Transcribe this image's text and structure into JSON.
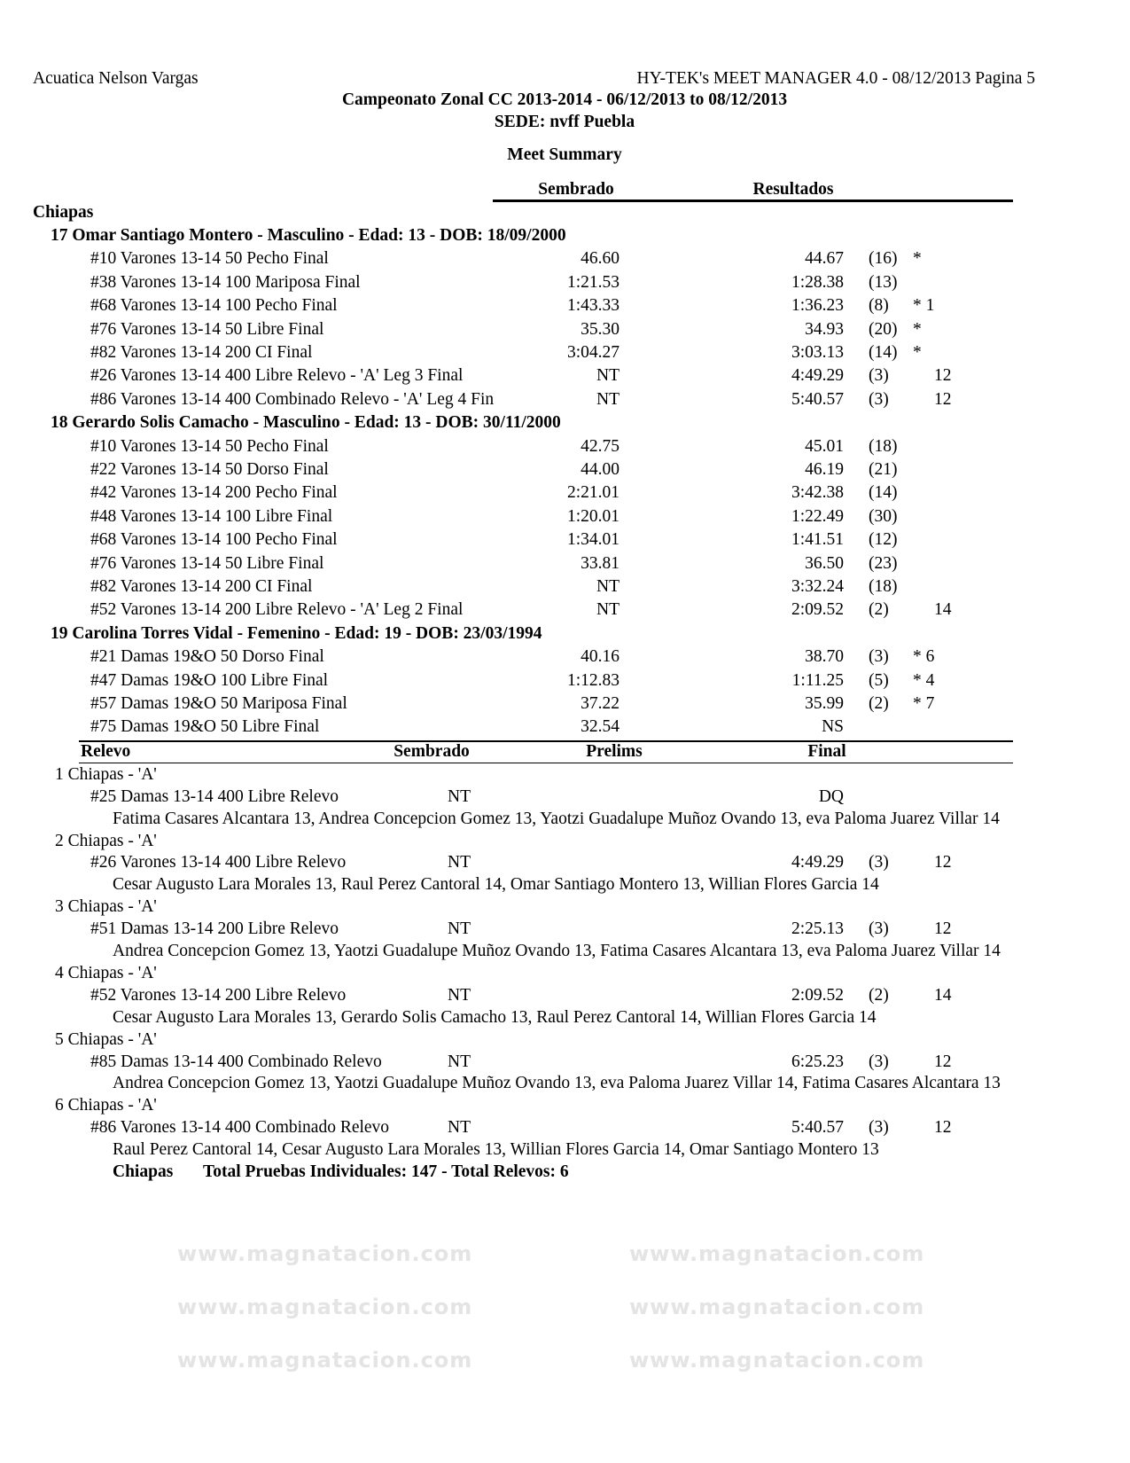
{
  "header": {
    "club": "Acuatica Nelson Vargas",
    "software": "HY-TEK's MEET MANAGER 4.0 - 08/12/2013  Pagina 5",
    "meet_title": "Campeonato Zonal CC 2013-2014 - 06/12/2013 to 08/12/2013",
    "venue": "SEDE: nvff Puebla",
    "report_title": "Meet Summary"
  },
  "watermark": "www.magnatacion.com",
  "columns": {
    "seed": "Sembrado",
    "results": "Resultados"
  },
  "team": "Chiapas",
  "swimmers": [
    {
      "header": "17  Omar Santiago Montero - Masculino - Edad: 13 - DOB: 18/09/2000",
      "events": [
        {
          "event": "#10 Varones 13-14 50 Pecho Final",
          "seed": "46.60",
          "result": "44.67",
          "place": "(16)",
          "mark": "*",
          "points": ""
        },
        {
          "event": "#38 Varones 13-14 100 Mariposa Final",
          "seed": "1:21.53",
          "result": "1:28.38",
          "place": "(13)",
          "mark": "",
          "points": ""
        },
        {
          "event": "#68 Varones 13-14 100 Pecho Final",
          "seed": "1:43.33",
          "result": "1:36.23",
          "place": "(8)",
          "mark": "* 1",
          "points": ""
        },
        {
          "event": "#76 Varones 13-14 50 Libre Final",
          "seed": "35.30",
          "result": "34.93",
          "place": "(20)",
          "mark": "*",
          "points": ""
        },
        {
          "event": "#82 Varones 13-14 200 CI Final",
          "seed": "3:04.27",
          "result": "3:03.13",
          "place": "(14)",
          "mark": "*",
          "points": ""
        },
        {
          "event": "#26 Varones 13-14 400 Libre Relevo - 'A' Leg 3 Final",
          "seed": "NT",
          "result": "4:49.29",
          "place": "(3)",
          "mark": "",
          "points": "12"
        },
        {
          "event": "#86 Varones 13-14 400 Combinado Relevo - 'A' Leg 4 Fin",
          "seed": "NT",
          "result": "5:40.57",
          "place": "(3)",
          "mark": "",
          "points": "12"
        }
      ]
    },
    {
      "header": "18  Gerardo Solis Camacho - Masculino - Edad: 13 - DOB: 30/11/2000",
      "events": [
        {
          "event": "#10 Varones 13-14 50 Pecho Final",
          "seed": "42.75",
          "result": "45.01",
          "place": "(18)",
          "mark": "",
          "points": ""
        },
        {
          "event": "#22 Varones 13-14 50 Dorso Final",
          "seed": "44.00",
          "result": "46.19",
          "place": "(21)",
          "mark": "",
          "points": ""
        },
        {
          "event": "#42 Varones 13-14 200 Pecho Final",
          "seed": "2:21.01",
          "result": "3:42.38",
          "place": "(14)",
          "mark": "",
          "points": ""
        },
        {
          "event": "#48 Varones 13-14 100 Libre Final",
          "seed": "1:20.01",
          "result": "1:22.49",
          "place": "(30)",
          "mark": "",
          "points": ""
        },
        {
          "event": "#68 Varones 13-14 100 Pecho Final",
          "seed": "1:34.01",
          "result": "1:41.51",
          "place": "(12)",
          "mark": "",
          "points": ""
        },
        {
          "event": "#76 Varones 13-14 50 Libre Final",
          "seed": "33.81",
          "result": "36.50",
          "place": "(23)",
          "mark": "",
          "points": ""
        },
        {
          "event": "#82 Varones 13-14 200 CI Final",
          "seed": "NT",
          "result": "3:32.24",
          "place": "(18)",
          "mark": "",
          "points": ""
        },
        {
          "event": "#52 Varones 13-14 200 Libre Relevo - 'A' Leg 2 Final",
          "seed": "NT",
          "result": "2:09.52",
          "place": "(2)",
          "mark": "",
          "points": "14"
        }
      ]
    },
    {
      "header": "19  Carolina Torres Vidal - Femenino - Edad: 19 - DOB: 23/03/1994",
      "events": [
        {
          "event": "#21 Damas 19&O 50 Dorso Final",
          "seed": "40.16",
          "result": "38.70",
          "place": "(3)",
          "mark": "* 6",
          "points": ""
        },
        {
          "event": "#47 Damas 19&O 100 Libre Final",
          "seed": "1:12.83",
          "result": "1:11.25",
          "place": "(5)",
          "mark": "* 4",
          "points": ""
        },
        {
          "event": "#57 Damas 19&O 50 Mariposa Final",
          "seed": "37.22",
          "result": "35.99",
          "place": "(2)",
          "mark": "* 7",
          "points": ""
        },
        {
          "event": "#75 Damas 19&O 50 Libre Final",
          "seed": "32.54",
          "result": "NS",
          "place": "",
          "mark": "",
          "points": ""
        }
      ]
    }
  ],
  "relay_columns": {
    "relay": "Relevo",
    "seed": "Sembrado",
    "prelims": "Prelims",
    "final": "Final"
  },
  "relays": [
    {
      "team": "1  Chiapas - 'A'",
      "event": "#25 Damas 13-14 400 Libre Relevo",
      "seed": "NT",
      "final": "DQ",
      "place": "",
      "points": "",
      "swimmers": "Fatima Casares Alcantara  13, Andrea Concepcion Gomez  13, Yaotzi Guadalupe Muñoz Ovando  13, eva Paloma Juarez Villar  14"
    },
    {
      "team": "2  Chiapas - 'A'",
      "event": "#26 Varones 13-14 400 Libre Relevo",
      "seed": "NT",
      "final": "4:49.29",
      "place": "(3)",
      "points": "12",
      "swimmers": "Cesar Augusto Lara Morales  13, Raul Perez Cantoral  14, Omar Santiago Montero  13, Willian Flores Garcia  14"
    },
    {
      "team": "3  Chiapas - 'A'",
      "event": "#51 Damas 13-14 200 Libre Relevo",
      "seed": "NT",
      "final": "2:25.13",
      "place": "(3)",
      "points": "12",
      "swimmers": "Andrea Concepcion Gomez  13, Yaotzi Guadalupe Muñoz Ovando  13, Fatima Casares Alcantara  13, eva Paloma Juarez Villar  14"
    },
    {
      "team": "4  Chiapas - 'A'",
      "event": "#52 Varones 13-14 200 Libre Relevo",
      "seed": "NT",
      "final": "2:09.52",
      "place": "(2)",
      "points": "14",
      "swimmers": "Cesar Augusto Lara Morales  13, Gerardo Solis Camacho  13, Raul Perez Cantoral  14, Willian Flores Garcia  14"
    },
    {
      "team": "5  Chiapas - 'A'",
      "event": "#85 Damas 13-14 400 Combinado Relevo",
      "seed": "NT",
      "final": "6:25.23",
      "place": "(3)",
      "points": "12",
      "swimmers": "Andrea Concepcion Gomez  13, Yaotzi Guadalupe Muñoz Ovando  13, eva Paloma Juarez Villar  14, Fatima Casares Alcantara  13"
    },
    {
      "team": "6  Chiapas - 'A'",
      "event": "#86 Varones 13-14 400 Combinado Relevo",
      "seed": "NT",
      "final": "5:40.57",
      "place": "(3)",
      "points": "12",
      "swimmers": "Raul Perez Cantoral  14, Cesar Augusto Lara Morales  13, Willian Flores Garcia  14, Omar Santiago Montero  13"
    }
  ],
  "totals": {
    "team": "Chiapas",
    "text": "Total Pruebas Individuales: 147  -  Total Relevos: 6"
  }
}
